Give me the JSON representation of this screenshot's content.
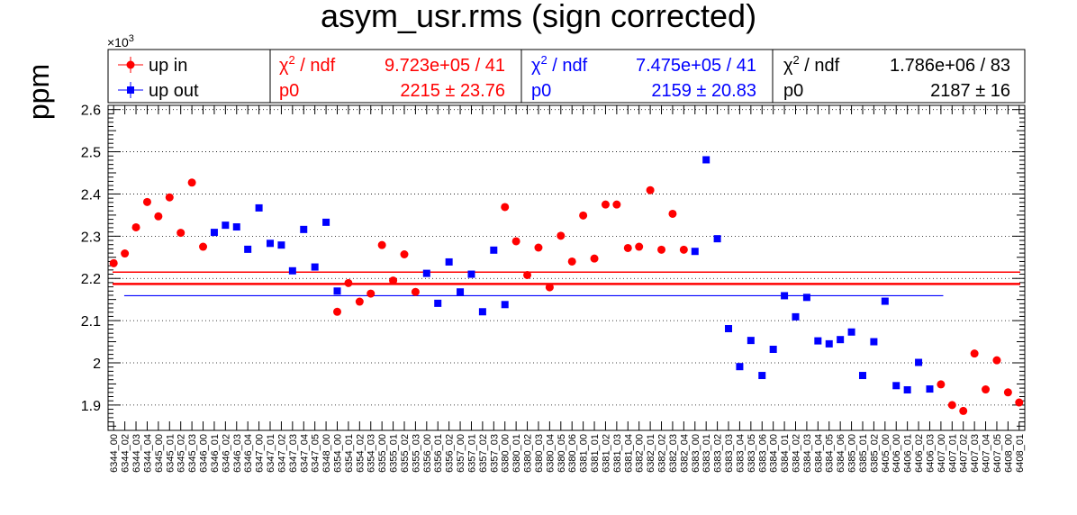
{
  "chart_data": {
    "type": "scatter",
    "title": "asym_usr.rms (sign corrected)",
    "ylabel": "ppm",
    "xlabel": "",
    "y_multiplier_label": "×10",
    "y_multiplier_exp": "3",
    "ylim": [
      1.84,
      2.61
    ],
    "y_ticks": [
      "1.9",
      "2",
      "2.1",
      "2.2",
      "2.3",
      "2.4",
      "2.5",
      "2.6"
    ],
    "grid": true,
    "legend_position": "top-left",
    "categories": [
      "6344_00",
      "6344_02",
      "6344_03",
      "6344_04",
      "6345_00",
      "6345_01",
      "6345_02",
      "6345_03",
      "6346_00",
      "6346_01",
      "6346_02",
      "6346_03",
      "6346_04",
      "6347_00",
      "6347_01",
      "6347_02",
      "6347_03",
      "6347_04",
      "6347_05",
      "6348_00",
      "6354_00",
      "6354_01",
      "6354_02",
      "6354_03",
      "6355_00",
      "6355_01",
      "6355_02",
      "6355_03",
      "6356_00",
      "6356_01",
      "6356_02",
      "6357_00",
      "6357_01",
      "6357_02",
      "6357_03",
      "6380_00",
      "6380_01",
      "6380_02",
      "6380_03",
      "6380_04",
      "6380_05",
      "6380_06",
      "6381_00",
      "6381_01",
      "6381_02",
      "6381_03",
      "6381_04",
      "6382_00",
      "6382_01",
      "6382_02",
      "6382_03",
      "6382_04",
      "6383_00",
      "6383_01",
      "6383_02",
      "6383_03",
      "6383_04",
      "6383_05",
      "6383_06",
      "6384_00",
      "6384_01",
      "6384_02",
      "6384_03",
      "6384_04",
      "6384_05",
      "6384_06",
      "6385_00",
      "6385_01",
      "6385_02",
      "6405_00",
      "6406_00",
      "6406_01",
      "6406_02",
      "6406_03",
      "6407_00",
      "6407_01",
      "6407_02",
      "6407_03",
      "6407_04",
      "6407_05",
      "6408_00",
      "6408_01"
    ],
    "series": [
      {
        "name": "up in",
        "color": "#ff0000",
        "marker": "circle",
        "values": [
          2.236,
          2.259,
          2.321,
          2.381,
          2.347,
          2.392,
          2.308,
          2.427,
          2.275,
          null,
          null,
          null,
          null,
          null,
          null,
          null,
          null,
          null,
          null,
          null,
          2.121,
          2.189,
          2.145,
          2.164,
          2.279,
          2.195,
          2.257,
          2.168,
          null,
          null,
          null,
          null,
          null,
          null,
          null,
          2.369,
          2.288,
          2.208,
          2.273,
          2.179,
          2.301,
          2.24,
          2.349,
          2.247,
          2.375,
          2.375,
          2.272,
          2.275,
          2.409,
          2.268,
          2.353,
          2.268,
          null,
          null,
          null,
          null,
          null,
          null,
          null,
          null,
          null,
          null,
          null,
          null,
          null,
          null,
          null,
          null,
          null,
          null,
          null,
          null,
          null,
          null,
          1.949,
          1.9,
          1.886,
          2.022,
          1.937,
          2.006,
          1.93,
          1.906
        ]
      },
      {
        "name": "up out",
        "color": "#0000ff",
        "marker": "square",
        "values": [
          null,
          null,
          null,
          null,
          null,
          null,
          null,
          null,
          null,
          2.309,
          2.326,
          2.322,
          2.269,
          2.367,
          2.283,
          2.279,
          2.218,
          2.316,
          2.227,
          2.333,
          2.17,
          null,
          null,
          null,
          null,
          null,
          null,
          null,
          2.212,
          2.141,
          2.239,
          2.168,
          2.21,
          2.121,
          2.267,
          2.138,
          null,
          null,
          null,
          null,
          null,
          null,
          null,
          null,
          null,
          null,
          null,
          null,
          null,
          null,
          null,
          null,
          2.264,
          2.481,
          2.294,
          2.081,
          1.991,
          2.053,
          1.97,
          2.032,
          2.159,
          2.109,
          2.155,
          2.052,
          2.045,
          2.055,
          2.073,
          1.97,
          2.05,
          2.146,
          1.946,
          1.936,
          2.001,
          1.938,
          null,
          null,
          null,
          null,
          null,
          null,
          null,
          null
        ]
      }
    ],
    "fits": [
      {
        "series": "up in",
        "color": "#ff0000",
        "value": 2.215,
        "chi2_ndf": "9.723e+05 / 41",
        "p0": "2215",
        "p0_err": "23.76"
      },
      {
        "series": "up out",
        "color": "#0000ff",
        "value": 2.159,
        "chi2_ndf": "7.475e+05 / 41",
        "p0": "2159",
        "p0_err": "20.83"
      },
      {
        "series": "combined",
        "color": "#000000",
        "value": 2.187,
        "chi2_ndf": "1.786e+06 / 83",
        "p0": "2187",
        "p0_err": "16"
      }
    ],
    "fit_box_labels": {
      "chi2": "χ",
      "chi2_sup": "2",
      "ndf": " / ndf",
      "p0": "p0",
      "pm": "±"
    }
  }
}
